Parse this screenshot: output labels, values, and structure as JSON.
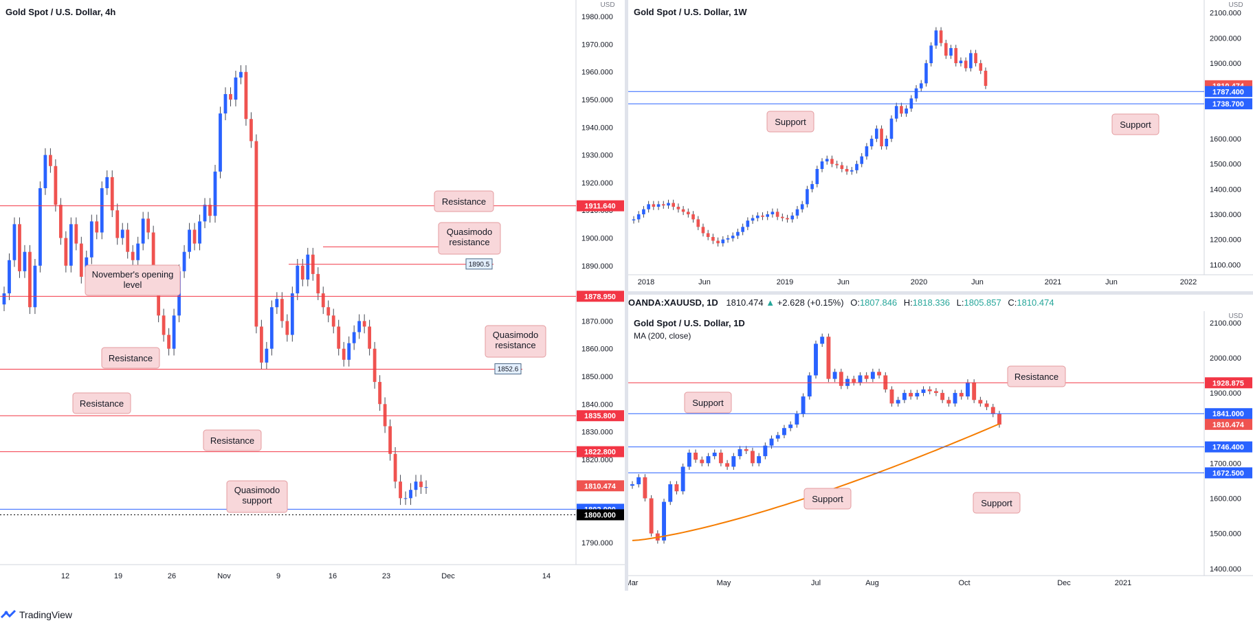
{
  "footer": {
    "brand": "TradingView",
    "logo_icon": "tradingview-logo-icon"
  },
  "colors": {
    "up": "#26a69a",
    "down": "#ef5350",
    "candle_up_fill": "#2962ff",
    "resistance": "#f23645",
    "support": "#2962ff",
    "ma": "#f57c00",
    "callout_bg": "#f8d7da",
    "callout_border": "#e39b9f"
  },
  "info_bar": {
    "symbol": "OANDA:XAUUSD, 1D",
    "last": "1810.474",
    "arrow": "▲",
    "change": "+2.628 (+0.15%)",
    "o_label": "O:",
    "o": "1807.846",
    "h_label": "H:",
    "h": "1818.336",
    "l_label": "L:",
    "l": "1805.857",
    "c_label": "C:",
    "c": "1810.474"
  },
  "chart_data": [
    {
      "type": "candlestick",
      "title": "Gold Spot / U.S. Dollar, 4h",
      "currency": "USD",
      "y_ticks": [
        "1980.000",
        "1970.000",
        "1960.000",
        "1950.000",
        "1940.000",
        "1930.000",
        "1920.000",
        "1910.000",
        "1900.000",
        "1890.000",
        "1880.000",
        "1870.000",
        "1860.000",
        "1850.000",
        "1840.000",
        "1830.000",
        "1820.000",
        "1810.000",
        "1790.000"
      ],
      "ylim": [
        1782,
        1985
      ],
      "x_ticks": [
        "12",
        "19",
        "26",
        "Nov",
        "2",
        "9",
        "16",
        "23",
        "Dec",
        "14"
      ],
      "levels": [
        {
          "value": 1911.64,
          "label": "1911.640",
          "kind": "resistance"
        },
        {
          "value": 1878.95,
          "label": "1878.950",
          "kind": "resistance"
        },
        {
          "value": 1852.6,
          "label": "1852.6",
          "kind": "resistance-small"
        },
        {
          "value": 1835.8,
          "label": "1835.800",
          "kind": "resistance"
        },
        {
          "value": 1822.8,
          "label": "1822.800",
          "kind": "resistance"
        },
        {
          "value": 1810.474,
          "label": "1810.474",
          "kind": "price"
        },
        {
          "value": 1802.0,
          "label": "1802.000",
          "kind": "support"
        },
        {
          "value": 1800.0,
          "label": "1800.000",
          "kind": "round"
        },
        {
          "value": 1896.8,
          "label": "1896.8",
          "kind": "qm-small"
        },
        {
          "value": 1890.5,
          "label": "1890.5",
          "kind": "qm-small"
        }
      ],
      "annotations": [
        {
          "text": "Resistance"
        },
        {
          "text": "Quasimodo resistance"
        },
        {
          "text": "November's opening level"
        },
        {
          "text": "Quasimodo resistance"
        },
        {
          "text": "Resistance"
        },
        {
          "text": "Resistance"
        },
        {
          "text": "Resistance"
        },
        {
          "text": "Quasimodo support"
        }
      ],
      "series_close": [
        1880,
        1892,
        1905,
        1888,
        1895,
        1875,
        1890,
        1918,
        1930,
        1926,
        1912,
        1900,
        1890,
        1905,
        1898,
        1886,
        1893,
        1906,
        1902,
        1918,
        1922,
        1910,
        1900,
        1903,
        1895,
        1892,
        1898,
        1907,
        1902,
        1883,
        1872,
        1865,
        1860,
        1872,
        1888,
        1895,
        1903,
        1898,
        1906,
        1912,
        1908,
        1924,
        1945,
        1952,
        1950,
        1958,
        1960,
        1943,
        1935,
        1868,
        1855,
        1860,
        1875,
        1878,
        1870,
        1865,
        1880,
        1890,
        1885,
        1894,
        1887,
        1880,
        1875,
        1872,
        1868,
        1860,
        1856,
        1862,
        1866,
        1870,
        1868,
        1860,
        1848,
        1840,
        1832,
        1822,
        1812,
        1806,
        1806,
        1809,
        1812,
        1810,
        1810
      ]
    },
    {
      "type": "candlestick",
      "title": "Gold Spot / U.S. Dollar, 1W",
      "currency": "USD",
      "y_ticks": [
        "2100.000",
        "2000.000",
        "1900.000",
        "1600.000",
        "1500.000",
        "1400.000",
        "1300.000",
        "1200.000",
        "1100.000"
      ],
      "ylim": [
        1060,
        2140
      ],
      "x_ticks": [
        "2018",
        "Jun",
        "2019",
        "Jun",
        "2020",
        "Jun",
        "2021",
        "Jun",
        "2022"
      ],
      "levels": [
        {
          "value": 1810.474,
          "label": "1810.474",
          "kind": "price"
        },
        {
          "value": 1787.4,
          "label": "1787.400",
          "kind": "support"
        },
        {
          "value": 1738.7,
          "label": "1738.700",
          "kind": "support"
        }
      ],
      "annotations": [
        {
          "text": "Support"
        },
        {
          "text": "Support"
        }
      ],
      "series_close": [
        1280,
        1300,
        1320,
        1340,
        1330,
        1340,
        1335,
        1345,
        1330,
        1320,
        1310,
        1300,
        1280,
        1250,
        1225,
        1210,
        1195,
        1185,
        1200,
        1205,
        1215,
        1230,
        1250,
        1275,
        1285,
        1295,
        1290,
        1300,
        1310,
        1290,
        1285,
        1280,
        1295,
        1320,
        1340,
        1400,
        1420,
        1480,
        1510,
        1520,
        1500,
        1495,
        1480,
        1470,
        1475,
        1500,
        1530,
        1570,
        1600,
        1640,
        1570,
        1600,
        1680,
        1730,
        1700,
        1720,
        1760,
        1800,
        1820,
        1900,
        1970,
        2030,
        1980,
        1930,
        1960,
        1900,
        1910,
        1880,
        1940,
        1900,
        1870,
        1810
      ]
    },
    {
      "type": "candlestick",
      "title": "Gold Spot / U.S. Dollar, 1D",
      "currency": "USD",
      "legend": "MA (200, close)",
      "y_ticks": [
        "2100.000",
        "2000.000",
        "1900.000",
        "1700.000",
        "1600.000",
        "1500.000",
        "1400.000"
      ],
      "ylim": [
        1380,
        2125
      ],
      "x_ticks": [
        "Mar",
        "May",
        "Jul",
        "Aug",
        "Oct",
        "Dec",
        "2021"
      ],
      "levels": [
        {
          "value": 1928.875,
          "label": "1928.875",
          "kind": "resistance"
        },
        {
          "value": 1841.0,
          "label": "1841.000",
          "kind": "support"
        },
        {
          "value": 1810.474,
          "label": "1810.474",
          "kind": "price"
        },
        {
          "value": 1746.4,
          "label": "1746.400",
          "kind": "support"
        },
        {
          "value": 1672.5,
          "label": "1672.500",
          "kind": "support"
        }
      ],
      "annotations": [
        {
          "text": "Resistance"
        },
        {
          "text": "Support"
        },
        {
          "text": "Support"
        },
        {
          "text": "Support"
        }
      ],
      "series_close": [
        1640,
        1660,
        1600,
        1500,
        1480,
        1590,
        1640,
        1620,
        1690,
        1730,
        1710,
        1700,
        1720,
        1730,
        1700,
        1690,
        1720,
        1740,
        1735,
        1700,
        1720,
        1750,
        1770,
        1780,
        1800,
        1810,
        1840,
        1890,
        1950,
        2040,
        2060,
        1940,
        1960,
        1920,
        1940,
        1930,
        1950,
        1940,
        1960,
        1950,
        1910,
        1870,
        1880,
        1900,
        1890,
        1900,
        1910,
        1905,
        1900,
        1880,
        1870,
        1900,
        1890,
        1930,
        1880,
        1870,
        1860,
        1840,
        1810
      ]
    }
  ]
}
